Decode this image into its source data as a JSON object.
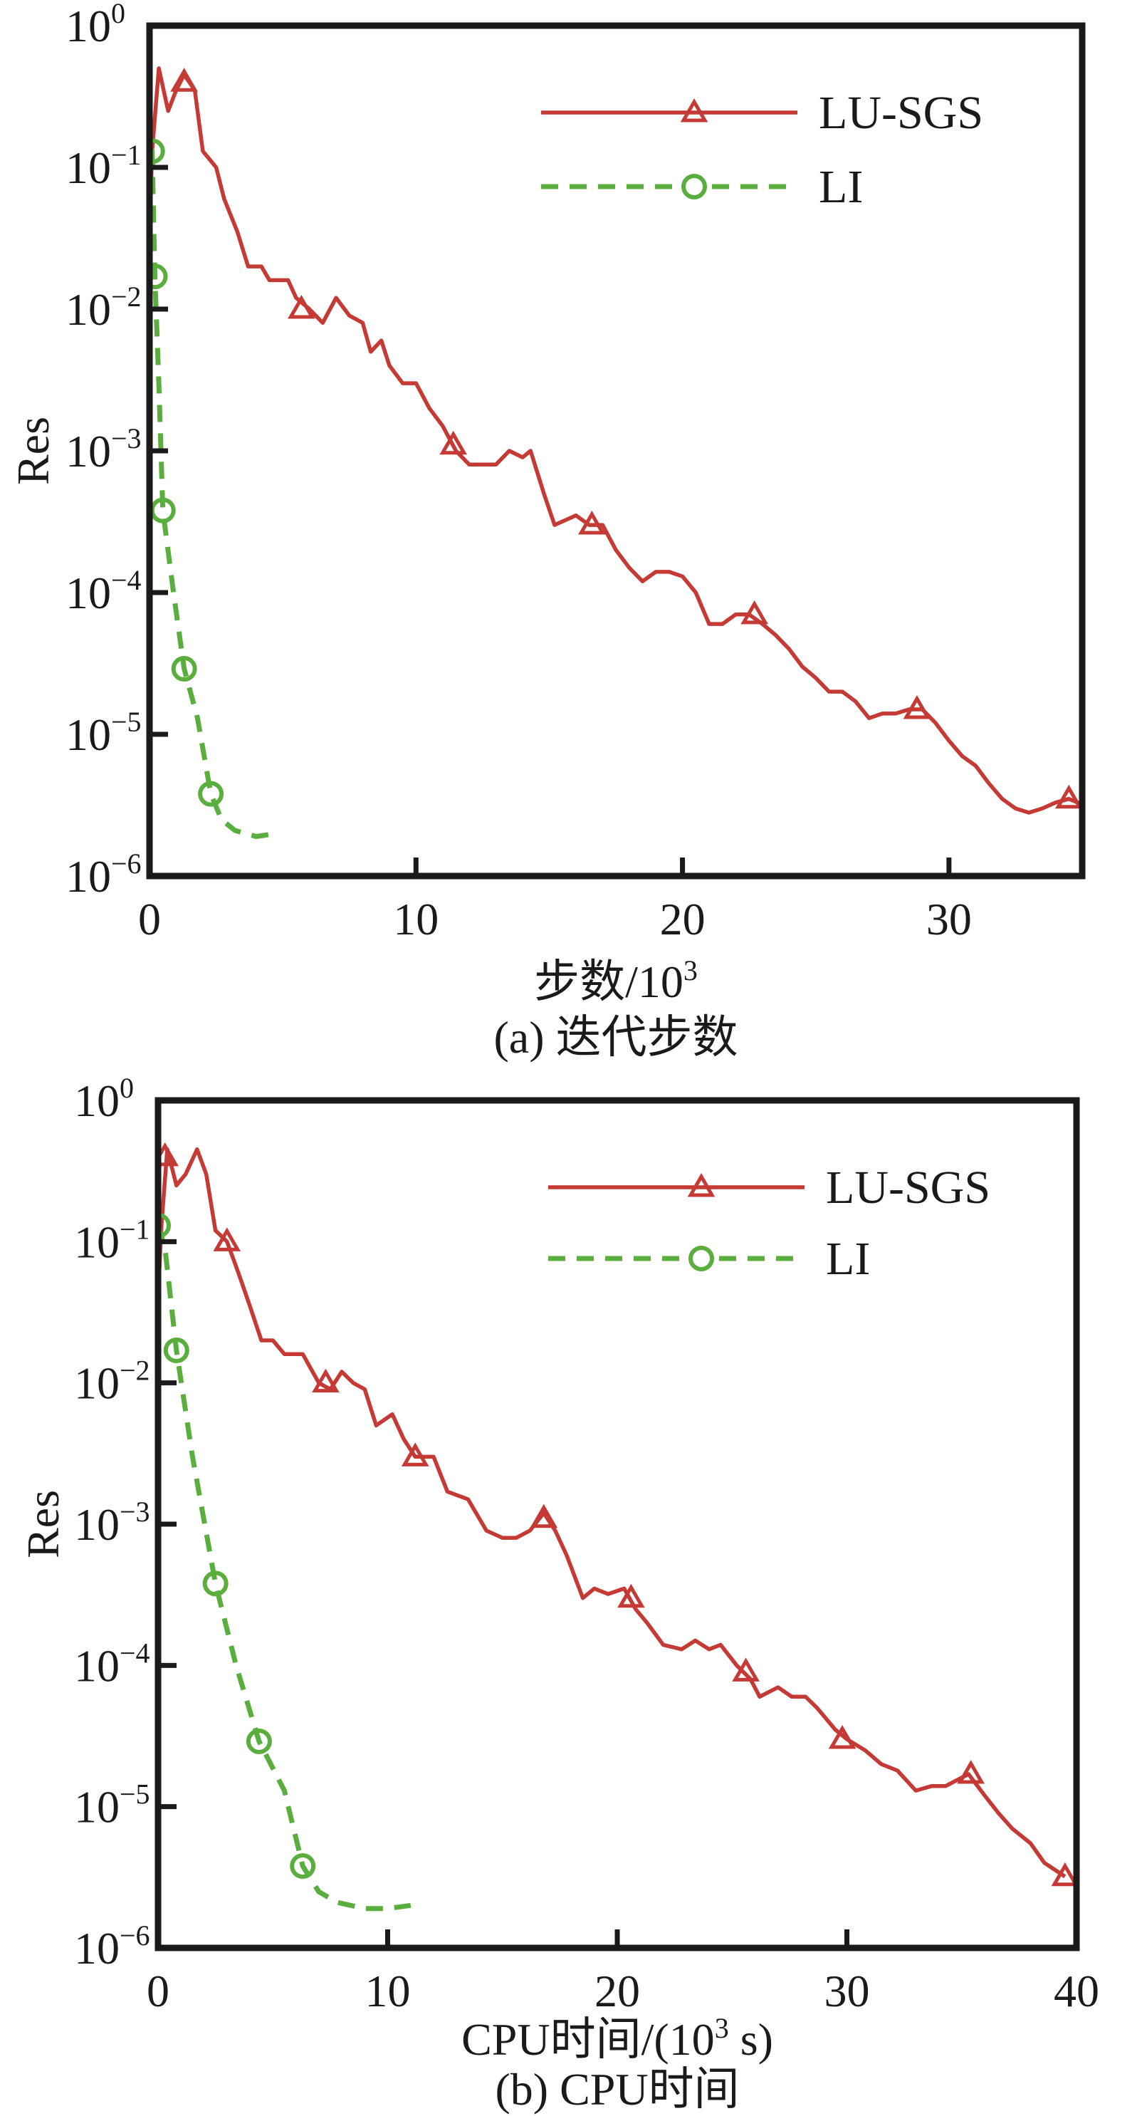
{
  "colors": {
    "lu_sgs": "#c53a35",
    "li": "#5aae3e",
    "axis": "#1a1a1a"
  },
  "chart_data": [
    {
      "type": "line",
      "caption": "(a) 迭代步数",
      "xlabel": "步数/10",
      "xlabel_sup": "3",
      "xlabel_tail": "",
      "ylabel": "Res",
      "xlim": [
        0,
        35
      ],
      "ylim": [
        1e-06,
        1
      ],
      "yscale": "log",
      "xticks": [
        "0",
        "10",
        "20",
        "30"
      ],
      "yticks": [
        {
          "base": "10",
          "exp": "0"
        },
        {
          "base": "10",
          "exp": "−1"
        },
        {
          "base": "10",
          "exp": "−2"
        },
        {
          "base": "10",
          "exp": "−3"
        },
        {
          "base": "10",
          "exp": "−4"
        },
        {
          "base": "10",
          "exp": "−5"
        },
        {
          "base": "10",
          "exp": "−6"
        }
      ],
      "legend_position": "top-right",
      "series": [
        {
          "name": "LU-SGS",
          "style": "solid",
          "marker": "triangle",
          "x": [
            0,
            0.1,
            0.35,
            0.7,
            1.0,
            1.3,
            1.7,
            2.0,
            2.5,
            2.8,
            3.3,
            3.7,
            4.2,
            4.5,
            5.2,
            5.5,
            6,
            6.5,
            7,
            7.5,
            8,
            8.3,
            8.7,
            9,
            9.5,
            10,
            10.5,
            11,
            11.5,
            12,
            12.5,
            13,
            13.5,
            14,
            14.3,
            14.8,
            15.2,
            16,
            16.5,
            17,
            17.5,
            18,
            18.5,
            19,
            19.5,
            20,
            20.5,
            21,
            21.5,
            22,
            22.5,
            23,
            23.5,
            24,
            24.5,
            25,
            25.5,
            26,
            26.5,
            27,
            27.5,
            28,
            28.5,
            29,
            29.5,
            30,
            30.5,
            31,
            31.5,
            32,
            32.5,
            33,
            33.5,
            34,
            34.5,
            35
          ],
          "y": [
            0.035,
            0.13,
            0.5,
            0.25,
            0.35,
            0.45,
            0.35,
            0.13,
            0.1,
            0.06,
            0.035,
            0.02,
            0.02,
            0.016,
            0.016,
            0.012,
            0.01,
            0.008,
            0.012,
            0.009,
            0.008,
            0.005,
            0.006,
            0.004,
            0.003,
            0.003,
            0.002,
            0.0015,
            0.001,
            0.0008,
            0.0008,
            0.0008,
            0.001,
            0.0009,
            0.001,
            0.0005,
            0.0003,
            0.00035,
            0.0003,
            0.0003,
            0.0002,
            0.00015,
            0.00012,
            0.00014,
            0.00014,
            0.00013,
            0.0001,
            6e-05,
            6e-05,
            7e-05,
            7e-05,
            6e-05,
            5e-05,
            4e-05,
            3e-05,
            2.5e-05,
            2e-05,
            2e-05,
            1.7e-05,
            1.3e-05,
            1.4e-05,
            1.4e-05,
            1.5e-05,
            1.5e-05,
            1.2e-05,
            9e-06,
            7e-06,
            6e-06,
            4.5e-06,
            3.5e-06,
            3e-06,
            2.8e-06,
            3e-06,
            3.3e-06,
            3.5e-06,
            3.2e-06
          ],
          "markers_x": [
            1.3,
            5.7,
            11.4,
            16.6,
            22.7,
            28.8,
            34.5
          ],
          "markers_y": [
            0.4,
            0.01,
            0.0011,
            0.0003,
            7e-05,
            1.5e-05,
            3.5e-06
          ]
        },
        {
          "name": "LI",
          "style": "dashed",
          "marker": "circle",
          "x": [
            0,
            0.1,
            0.2,
            0.35,
            0.5,
            0.9,
            1.3,
            1.8,
            2.3,
            2.7,
            3.2,
            4.0,
            4.8
          ],
          "y": [
            0.13,
            0.13,
            0.017,
            0.003,
            0.00038,
            0.0001,
            2.9e-05,
            1.3e-05,
            3.8e-06,
            2.5e-06,
            2.1e-06,
            1.9e-06,
            2e-06
          ],
          "markers_x": [
            0.1,
            0.2,
            0.5,
            1.3,
            2.3
          ],
          "markers_y": [
            0.13,
            0.017,
            0.00038,
            2.9e-05,
            3.8e-06
          ]
        }
      ]
    },
    {
      "type": "line",
      "caption": "(b) CPU时间",
      "xlabel": "CPU时间/(10",
      "xlabel_sup": "3",
      "xlabel_tail": " s)",
      "ylabel": "Res",
      "xlim": [
        0,
        40
      ],
      "ylim": [
        1e-06,
        1
      ],
      "yscale": "log",
      "xticks": [
        "0",
        "10",
        "20",
        "30",
        "40"
      ],
      "yticks": [
        {
          "base": "10",
          "exp": "0"
        },
        {
          "base": "10",
          "exp": "−1"
        },
        {
          "base": "10",
          "exp": "−2"
        },
        {
          "base": "10",
          "exp": "−3"
        },
        {
          "base": "10",
          "exp": "−4"
        },
        {
          "base": "10",
          "exp": "−5"
        },
        {
          "base": "10",
          "exp": "−6"
        }
      ],
      "legend_position": "top-right",
      "series": [
        {
          "name": "LU-SGS",
          "style": "solid",
          "marker": "triangle",
          "x": [
            0,
            0.15,
            0.4,
            0.8,
            1.2,
            1.7,
            2.1,
            2.5,
            3,
            3.5,
            4,
            4.5,
            5,
            5.5,
            6.3,
            7,
            7.5,
            8,
            8.5,
            9,
            9.5,
            10.2,
            10.7,
            11.2,
            12,
            12.6,
            13.5,
            14.3,
            15,
            15.6,
            16.2,
            16.8,
            17.3,
            17.8,
            18.5,
            19,
            19.6,
            20.3,
            20.8,
            21.3,
            22,
            22.8,
            23.4,
            24,
            24.5,
            25.2,
            25.8,
            26.2,
            27,
            27.6,
            28.2,
            28.7,
            29.5,
            30,
            30.8,
            31.5,
            32.2,
            33,
            33.7,
            34.3,
            35.3,
            36,
            36.6,
            37.2,
            38,
            38.6,
            39.5
          ],
          "y": [
            0.04,
            0.13,
            0.45,
            0.25,
            0.3,
            0.45,
            0.3,
            0.12,
            0.1,
            0.06,
            0.035,
            0.02,
            0.02,
            0.016,
            0.016,
            0.01,
            0.009,
            0.012,
            0.01,
            0.009,
            0.005,
            0.006,
            0.004,
            0.003,
            0.003,
            0.0017,
            0.0015,
            0.0009,
            0.0008,
            0.0008,
            0.0009,
            0.0012,
            0.0009,
            0.0006,
            0.0003,
            0.00035,
            0.00032,
            0.00035,
            0.00025,
            0.0002,
            0.00014,
            0.00013,
            0.00015,
            0.00013,
            0.00014,
            0.0001,
            8e-05,
            6e-05,
            7e-05,
            6e-05,
            6e-05,
            5e-05,
            3.5e-05,
            3e-05,
            2.5e-05,
            2e-05,
            1.8e-05,
            1.3e-05,
            1.4e-05,
            1.4e-05,
            1.7e-05,
            1.2e-05,
            9e-06,
            7e-06,
            5.5e-06,
            4e-06,
            3.2e-06
          ],
          "markers_x": [
            0.3,
            3.0,
            7.3,
            11.2,
            16.8,
            20.6,
            25.6,
            29.8,
            35.4,
            39.5
          ],
          "markers_y": [
            0.4,
            0.1,
            0.01,
            0.003,
            0.0011,
            0.0003,
            9e-05,
            3e-05,
            1.7e-05,
            3.2e-06
          ]
        },
        {
          "name": "LI",
          "style": "dashed",
          "marker": "circle",
          "x": [
            0,
            0.3,
            0.8,
            1.5,
            2.5,
            3.4,
            4.4,
            5.5,
            6.3,
            7.0,
            7.8,
            9,
            10,
            11
          ],
          "y": [
            0.13,
            0.09,
            0.017,
            0.003,
            0.00038,
            0.0001,
            2.9e-05,
            1.3e-05,
            3.8e-06,
            2.5e-06,
            2.1e-06,
            1.9e-06,
            1.9e-06,
            2e-06
          ],
          "markers_x": [
            0,
            0.8,
            2.5,
            4.4,
            6.3
          ],
          "markers_y": [
            0.13,
            0.017,
            0.00038,
            2.9e-05,
            3.8e-06
          ]
        }
      ]
    }
  ]
}
